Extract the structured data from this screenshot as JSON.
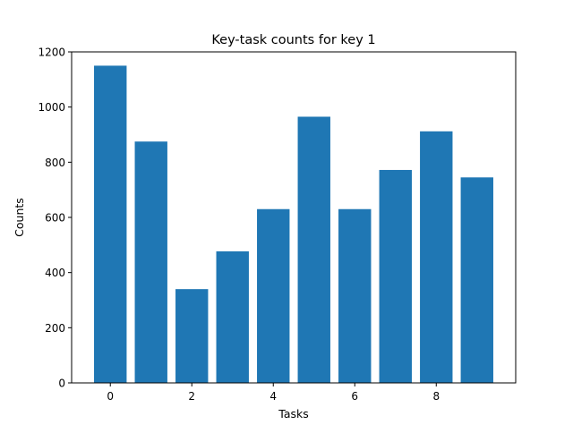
{
  "chart_data": {
    "type": "bar",
    "title": "Key-task counts for key 1",
    "xlabel": "Tasks",
    "ylabel": "Counts",
    "categories": [
      0,
      1,
      2,
      3,
      4,
      5,
      6,
      7,
      8,
      9
    ],
    "values": [
      1150,
      875,
      340,
      477,
      630,
      965,
      630,
      772,
      912,
      745
    ],
    "xlim": [
      -0.95,
      9.95
    ],
    "ylim": [
      0,
      1200
    ],
    "xticks": [
      0,
      2,
      4,
      6,
      8
    ],
    "yticks": [
      0,
      200,
      400,
      600,
      800,
      1000,
      1200
    ],
    "bar_width": 0.8,
    "bar_color": "#1f77b4",
    "grid": false,
    "legend": "none"
  }
}
